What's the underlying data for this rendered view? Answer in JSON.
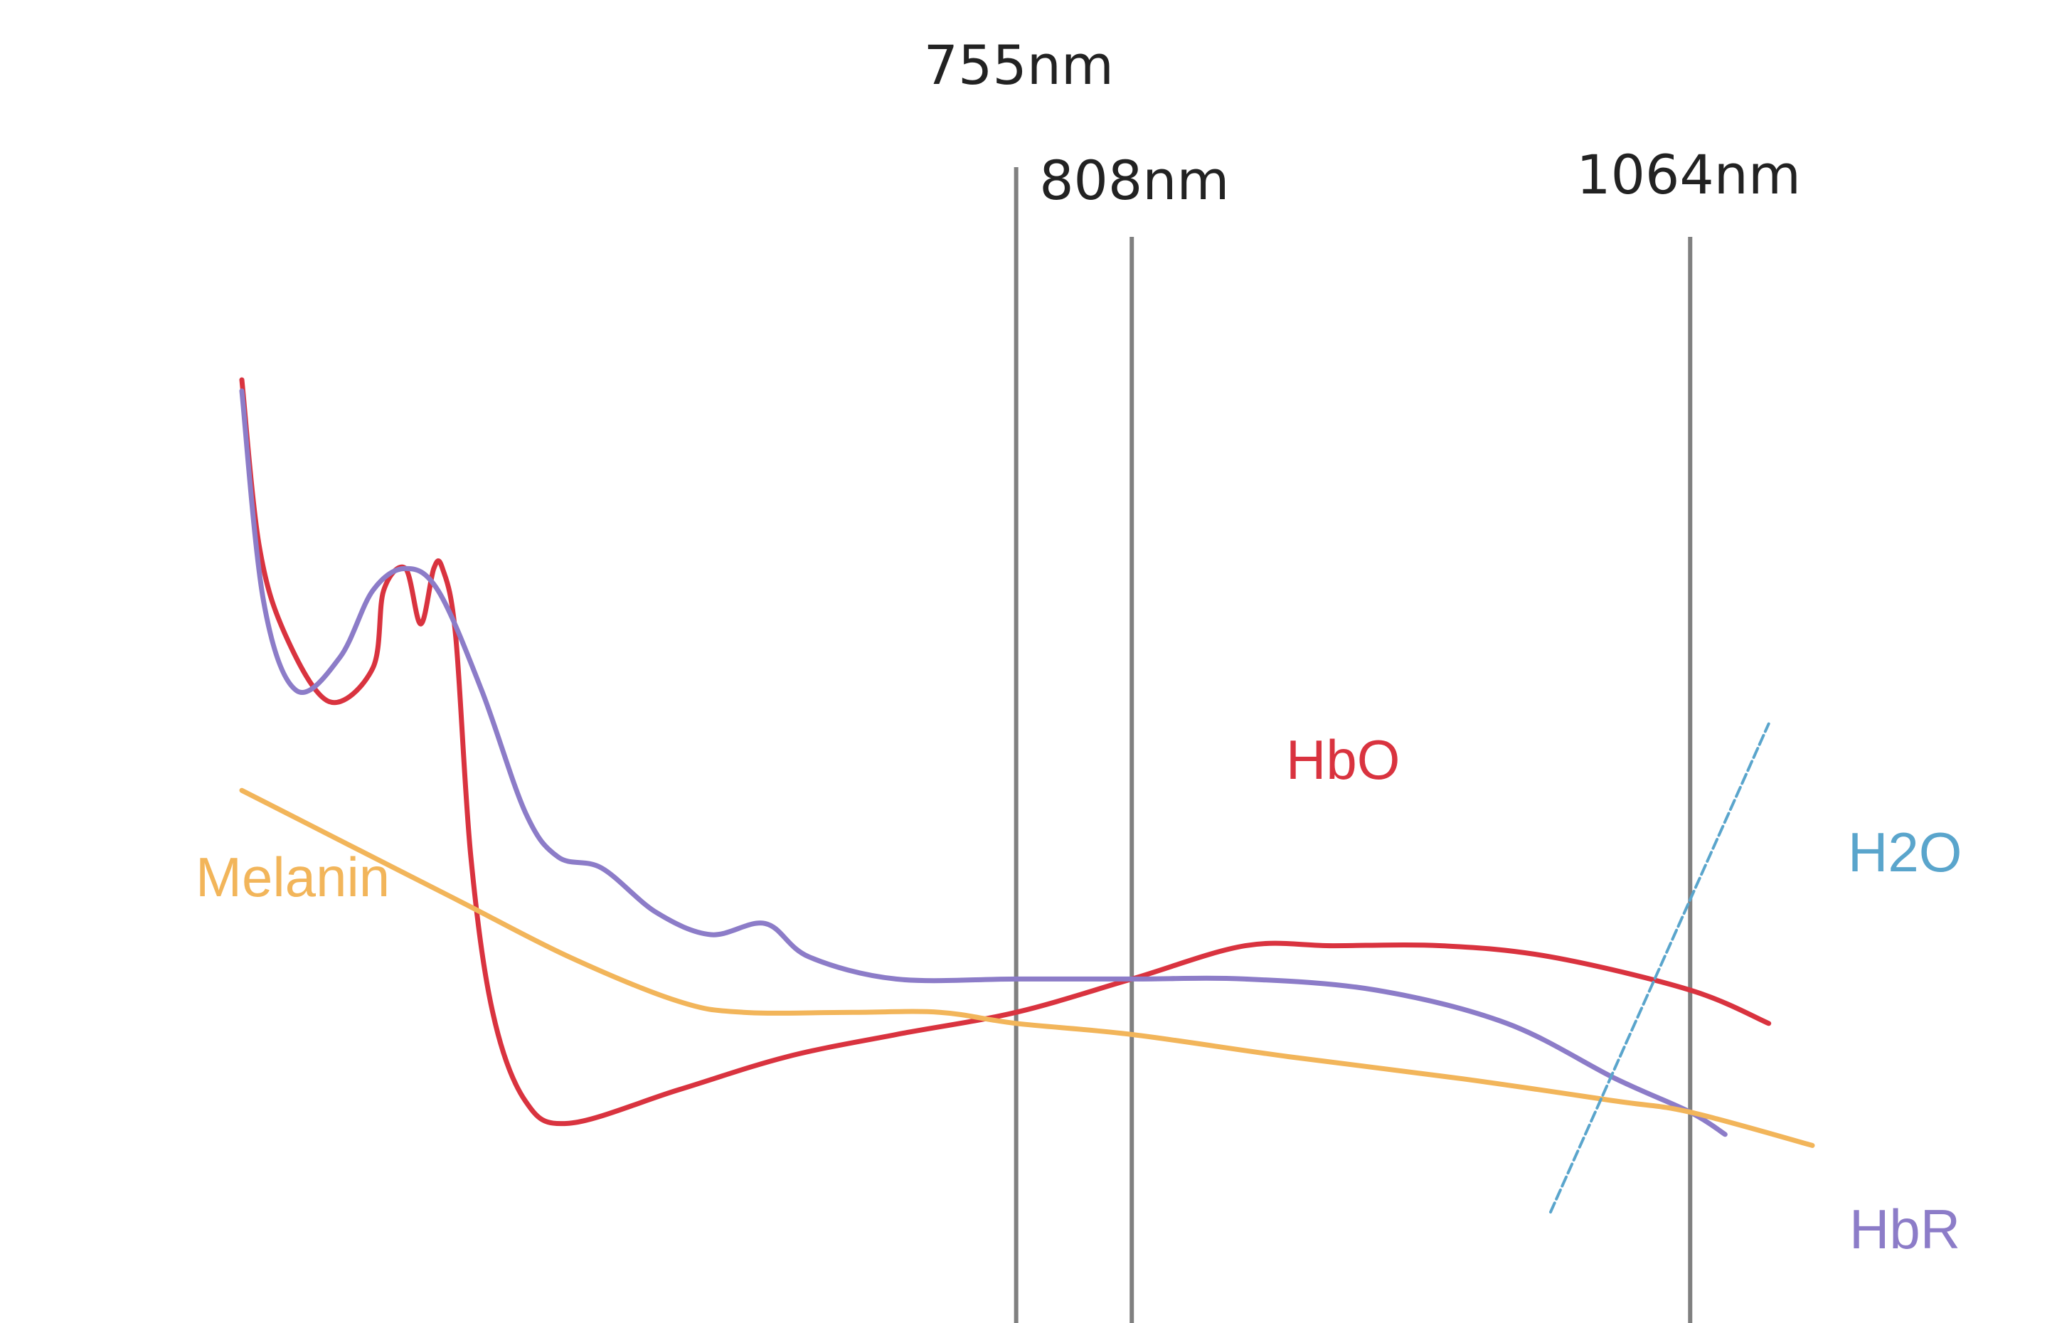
{
  "chart_data": {
    "type": "line",
    "title": "",
    "xlabel": "",
    "ylabel": "",
    "x_unit": "nm",
    "xlim": [
      400,
      1150
    ],
    "ylim": [
      0,
      100
    ],
    "grid": false,
    "axes_visible": false,
    "markers": [
      {
        "x": 755,
        "label": "755nm"
      },
      {
        "x": 808,
        "label": "808nm"
      },
      {
        "x": 1064,
        "label": "1064nm"
      }
    ],
    "series": [
      {
        "name": "HbO",
        "color": "#d9333f",
        "points": [
          [
            400,
            85
          ],
          [
            408,
            70
          ],
          [
            420,
            62
          ],
          [
            440,
            56
          ],
          [
            460,
            59
          ],
          [
            465,
            66
          ],
          [
            475,
            68
          ],
          [
            482,
            63
          ],
          [
            488,
            68
          ],
          [
            492,
            68
          ],
          [
            498,
            62
          ],
          [
            505,
            42
          ],
          [
            515,
            28
          ],
          [
            530,
            20
          ],
          [
            550,
            18
          ],
          [
            600,
            21
          ],
          [
            650,
            24
          ],
          [
            700,
            26
          ],
          [
            755,
            28
          ],
          [
            808,
            31
          ],
          [
            860,
            34
          ],
          [
            900,
            34
          ],
          [
            950,
            34
          ],
          [
            1000,
            33
          ],
          [
            1064,
            30
          ],
          [
            1100,
            27
          ]
        ]
      },
      {
        "name": "HbR",
        "color": "#8c7cc8",
        "points": [
          [
            400,
            84
          ],
          [
            410,
            65
          ],
          [
            425,
            57
          ],
          [
            445,
            60
          ],
          [
            460,
            66
          ],
          [
            475,
            68
          ],
          [
            490,
            66
          ],
          [
            510,
            57
          ],
          [
            530,
            46
          ],
          [
            545,
            42
          ],
          [
            565,
            41
          ],
          [
            590,
            37
          ],
          [
            615,
            35
          ],
          [
            640,
            36
          ],
          [
            660,
            33
          ],
          [
            700,
            31
          ],
          [
            755,
            31
          ],
          [
            808,
            31
          ],
          [
            860,
            31
          ],
          [
            920,
            30
          ],
          [
            980,
            27
          ],
          [
            1030,
            22
          ],
          [
            1064,
            19
          ],
          [
            1080,
            17
          ]
        ]
      },
      {
        "name": "Melanin",
        "color": "#f2b55a",
        "points": [
          [
            400,
            48
          ],
          [
            450,
            43
          ],
          [
            500,
            38
          ],
          [
            550,
            33
          ],
          [
            600,
            29
          ],
          [
            630,
            28
          ],
          [
            680,
            28
          ],
          [
            720,
            28
          ],
          [
            755,
            27
          ],
          [
            808,
            26
          ],
          [
            880,
            24
          ],
          [
            960,
            22
          ],
          [
            1030,
            20
          ],
          [
            1064,
            19
          ],
          [
            1120,
            16
          ]
        ]
      },
      {
        "name": "H2O",
        "color": "#5aa5cc",
        "dashed": true,
        "points": [
          [
            1000,
            10
          ],
          [
            1100,
            54
          ]
        ]
      }
    ]
  }
}
